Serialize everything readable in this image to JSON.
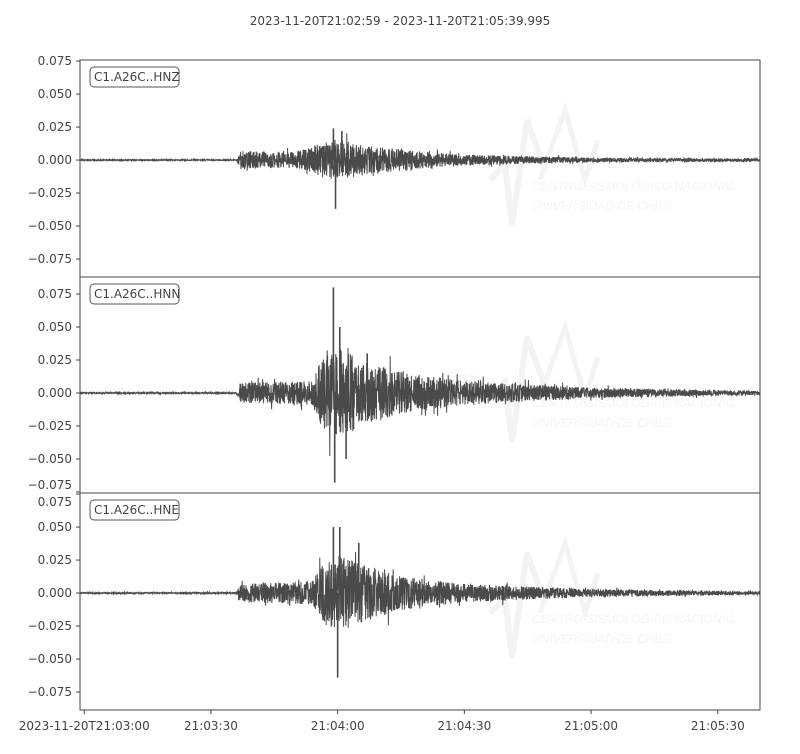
{
  "chart_data": {
    "type": "line",
    "title": "2023-11-20T21:02:59  -  2023-11-20T21:05:39.995",
    "time_range": [
      "2023-11-20T21:02:59",
      "2023-11-20T21:05:39.995"
    ],
    "x_ticks": [
      {
        "time": "21:03:00",
        "label": "2023-11-20T21:03:00"
      },
      {
        "time": "21:03:30",
        "label": "21:03:30"
      },
      {
        "time": "21:04:00",
        "label": "21:04:00"
      },
      {
        "time": "21:04:30",
        "label": "21:04:30"
      },
      {
        "time": "21:05:00",
        "label": "21:05:00"
      },
      {
        "time": "21:05:30",
        "label": "21:05:30"
      }
    ],
    "y_ticks": [
      -0.075,
      -0.05,
      -0.025,
      0.0,
      0.025,
      0.05,
      0.075
    ],
    "y_tick_labels": [
      "−0.075",
      "−0.050",
      "−0.025",
      "0.000",
      "0.025",
      "0.050",
      "0.075"
    ],
    "line_color": "#4a4a4a",
    "grid": false,
    "series": [
      {
        "name": "C1.A26C..HNZ",
        "ylim": [
          -0.0886,
          0.0758
        ],
        "envelope": [
          [
            "21:02:59",
            0.0004
          ],
          [
            "21:03:36",
            0.0004
          ],
          [
            "21:03:37",
            0.007
          ],
          [
            "21:03:50",
            0.006
          ],
          [
            "21:03:55",
            0.012
          ],
          [
            "21:04:00",
            0.016
          ],
          [
            "21:04:05",
            0.012
          ],
          [
            "21:04:15",
            0.008
          ],
          [
            "21:04:30",
            0.004
          ],
          [
            "21:05:00",
            0.0018
          ],
          [
            "21:05:39.995",
            0.001
          ]
        ],
        "peaks": [
          [
            "21:03:59.5",
            -0.037
          ],
          [
            "21:03:59",
            0.024
          ],
          [
            "21:04:01",
            0.022
          ]
        ]
      },
      {
        "name": "C1.A26C..HNN",
        "ylim": [
          -0.0758,
          0.0879
        ],
        "envelope": [
          [
            "21:02:59",
            0.0005
          ],
          [
            "21:03:36",
            0.0005
          ],
          [
            "21:03:37",
            0.008
          ],
          [
            "21:03:54",
            0.009
          ],
          [
            "21:03:56",
            0.025
          ],
          [
            "21:04:00",
            0.035
          ],
          [
            "21:04:06",
            0.025
          ],
          [
            "21:04:15",
            0.016
          ],
          [
            "21:04:30",
            0.009
          ],
          [
            "21:05:00",
            0.004
          ],
          [
            "21:05:39.995",
            0.0015
          ]
        ],
        "peaks": [
          [
            "21:03:59",
            0.08
          ],
          [
            "21:03:59.3",
            -0.068
          ],
          [
            "21:04:00.5",
            0.05
          ],
          [
            "21:04:02",
            -0.05
          ],
          [
            "21:04:07",
            0.03
          ]
        ]
      },
      {
        "name": "C1.A26C..HNE",
        "ylim": [
          -0.0886,
          0.0758
        ],
        "envelope": [
          [
            "21:02:59",
            0.0005
          ],
          [
            "21:03:36",
            0.0005
          ],
          [
            "21:03:37",
            0.007
          ],
          [
            "21:03:54",
            0.009
          ],
          [
            "21:03:56",
            0.022
          ],
          [
            "21:04:00",
            0.03
          ],
          [
            "21:04:06",
            0.022
          ],
          [
            "21:04:15",
            0.013
          ],
          [
            "21:04:30",
            0.007
          ],
          [
            "21:05:00",
            0.003
          ],
          [
            "21:05:39.995",
            0.0012
          ]
        ],
        "peaks": [
          [
            "21:03:59",
            0.05
          ],
          [
            "21:04:00",
            -0.064
          ],
          [
            "21:04:00.5",
            0.05
          ],
          [
            "21:04:05",
            0.038
          ]
        ]
      }
    ]
  },
  "watermark": {
    "logo": "CSN",
    "line1": "CENTRO SISMOLÓGICO NACIONAL",
    "line2": "UNIVERSIDAD DE CHILE"
  }
}
